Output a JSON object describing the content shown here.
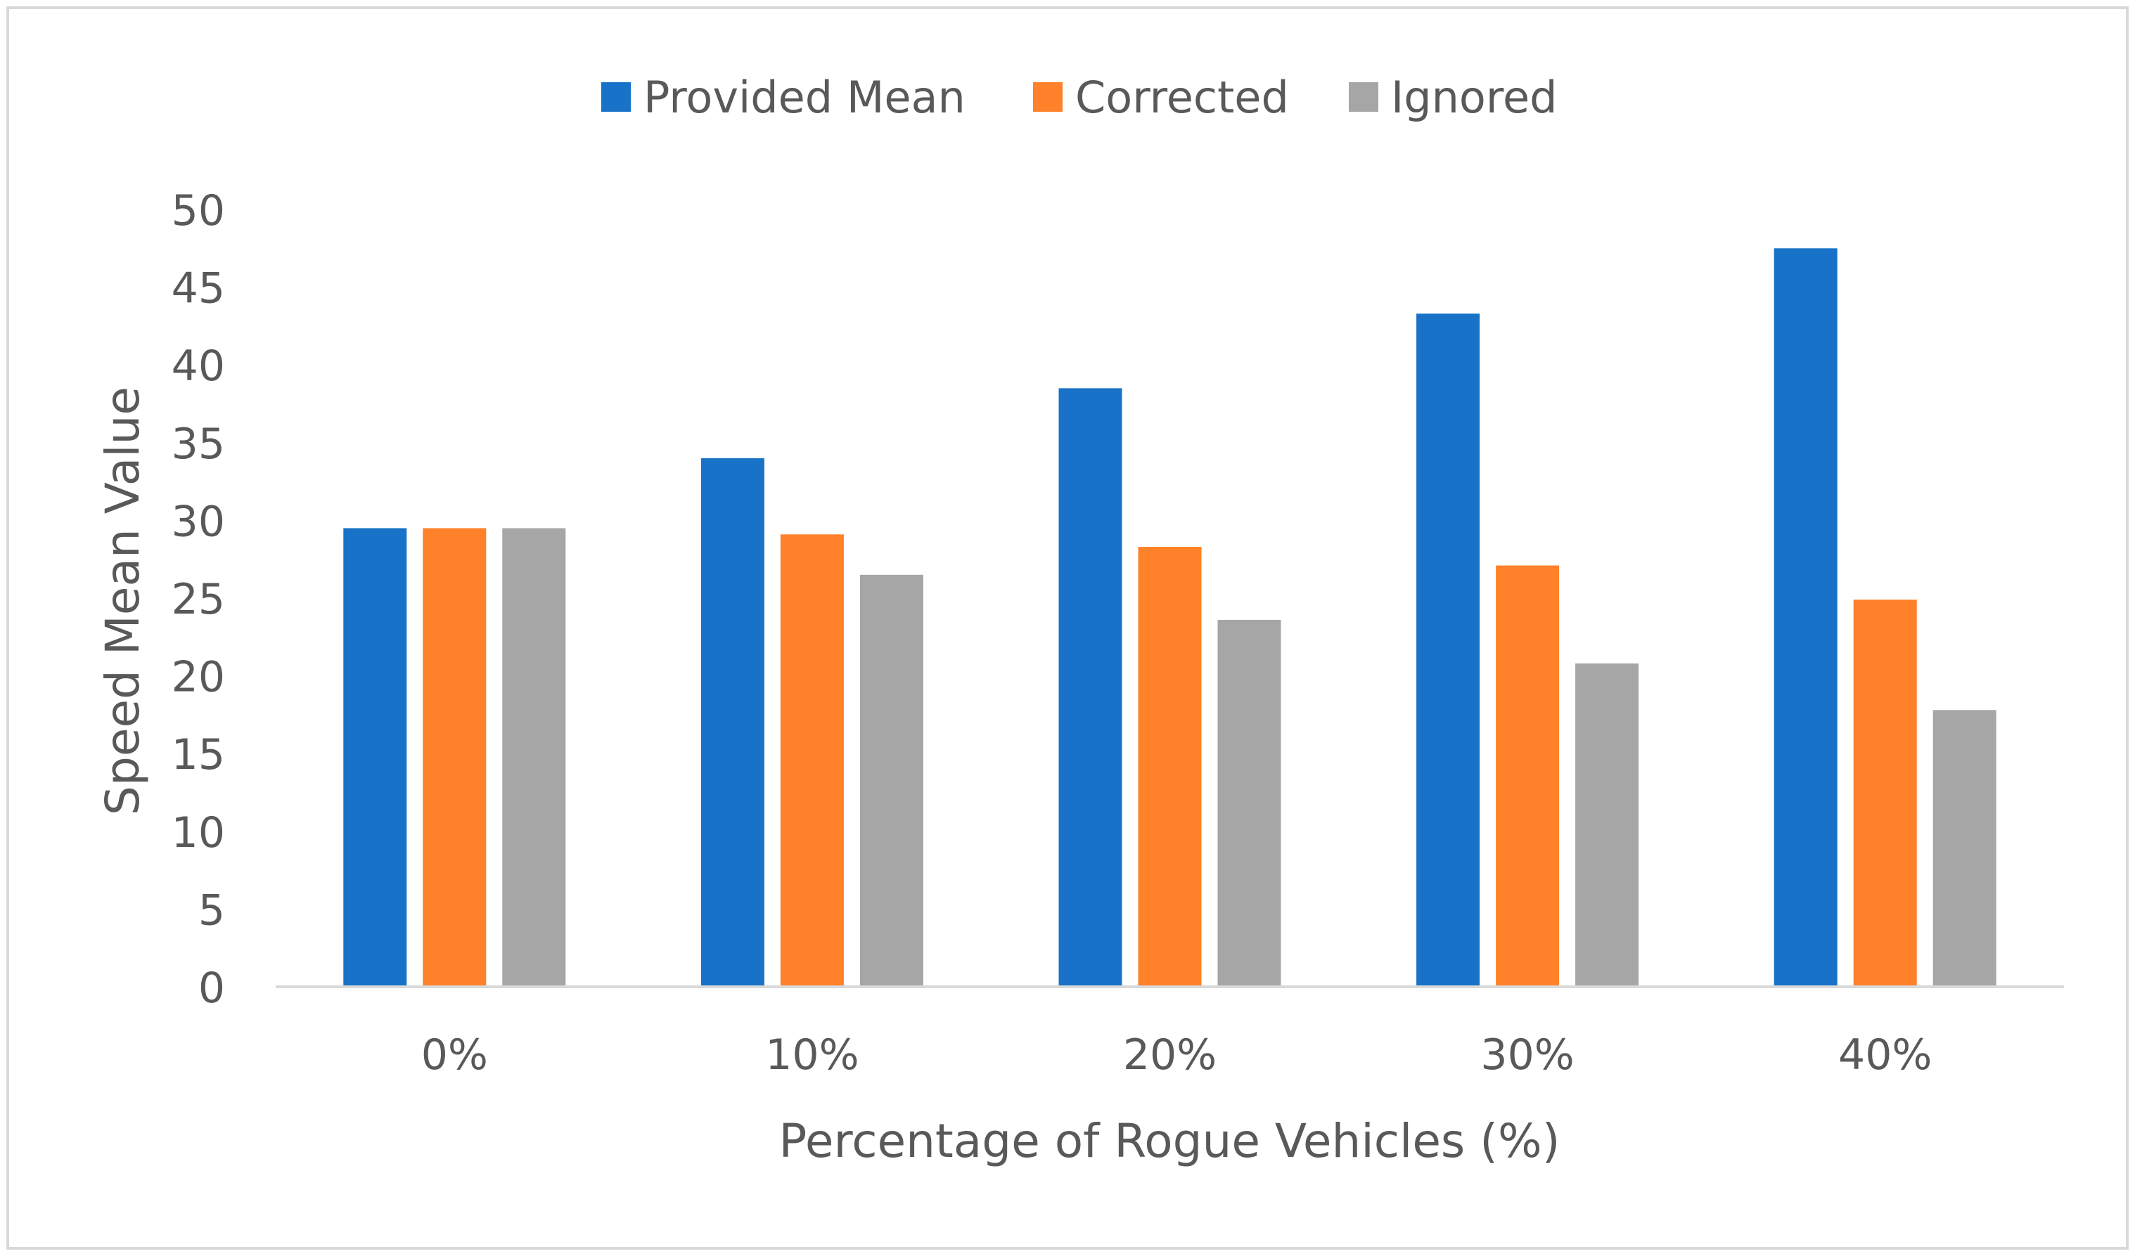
{
  "chart_data": {
    "type": "bar",
    "categories": [
      "0%",
      "10%",
      "20%",
      "30%",
      "40%"
    ],
    "series": [
      {
        "name": "Provided Mean",
        "values": [
          29.5,
          34.0,
          38.5,
          43.3,
          47.5
        ]
      },
      {
        "name": "Corrected",
        "values": [
          29.5,
          29.1,
          28.3,
          27.1,
          24.9
        ]
      },
      {
        "name": "Ignored",
        "values": [
          29.5,
          26.5,
          23.6,
          20.8,
          17.8
        ]
      }
    ],
    "title": "",
    "xlabel": "Percentage of Rogue Vehicles (%)",
    "ylabel": "Speed Mean Value",
    "ylim": [
      0,
      50
    ],
    "yticks": [
      "0",
      "5",
      "10",
      "15",
      "20",
      "25",
      "30",
      "35",
      "40",
      "45",
      "50"
    ],
    "grid": false,
    "legend": "top",
    "colors": [
      "#1872C7",
      "#FF8129",
      "#A6A6A6"
    ],
    "axis_color": "#D9D9D9",
    "frame_color": "#D9D9D9"
  }
}
